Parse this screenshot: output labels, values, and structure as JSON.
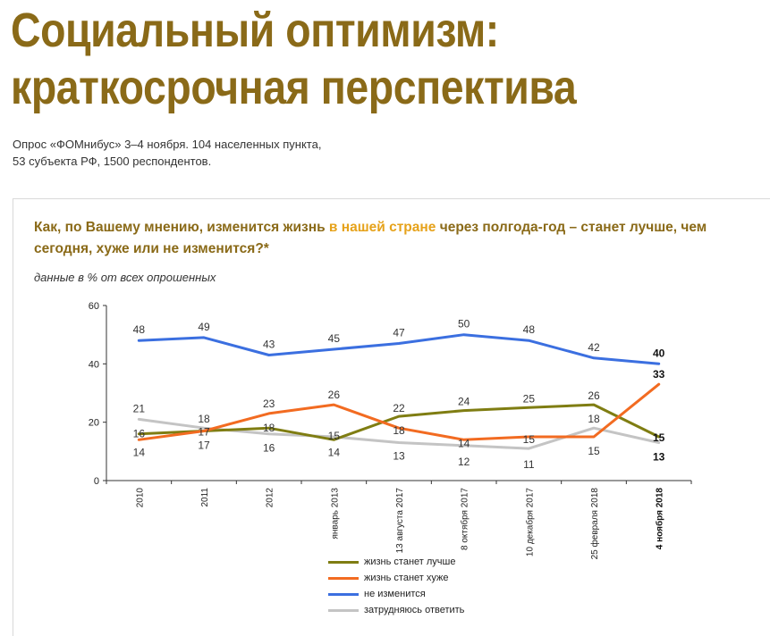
{
  "header": {
    "title_line1": "Социальный оптимизм:",
    "title_line2": "краткосрочная перспектива",
    "subtitle_line1": "Опрос «ФОМнибус» 3–4 ноября. 104 населенных пункта,",
    "subtitle_line2": "53 субъекта РФ, 1500 респондентов."
  },
  "question": {
    "part1": "Как, по Вашему мнению, изменится жизнь ",
    "highlight": "в нашей стране",
    "part2": " через полгода-год – станет лучше, чем сегодня, хуже или не изменится?*"
  },
  "units": "данные в % от всех опрошенных",
  "colors": {
    "title": "#8a6a18",
    "highlight": "#e6a21a",
    "better": "#7f7d12",
    "worse": "#f26b21",
    "same": "#3b6fe0",
    "unsure": "#c4c4c4"
  },
  "chart_data": {
    "type": "line",
    "categories": [
      "2010",
      "2011",
      "2012",
      "январь 2013",
      "13 августа 2017",
      "8 октября 2017",
      "10 декабря 2017",
      "25 февраля 2018",
      "4 ноября 2018"
    ],
    "ylim": [
      0,
      60
    ],
    "yticks": [
      0,
      20,
      40,
      60
    ],
    "grid": false,
    "legend_position": "bottom",
    "series": [
      {
        "name": "жизнь станет лучше",
        "color": "#7f7d12",
        "values": [
          16,
          17,
          18,
          14,
          22,
          24,
          25,
          26,
          15
        ]
      },
      {
        "name": "жизнь станет хуже",
        "color": "#f26b21",
        "values": [
          14,
          17,
          23,
          26,
          18,
          14,
          15,
          15,
          33
        ]
      },
      {
        "name": "не изменится",
        "color": "#3b6fe0",
        "values": [
          48,
          49,
          43,
          45,
          47,
          50,
          48,
          42,
          40
        ]
      },
      {
        "name": "затрудняюсь ответить",
        "color": "#c4c4c4",
        "values": [
          21,
          18,
          16,
          15,
          13,
          12,
          11,
          18,
          13
        ]
      }
    ],
    "labels": [
      {
        "text": "48",
        "series": 2,
        "point": 0
      },
      {
        "text": "49",
        "series": 2,
        "point": 1
      },
      {
        "text": "43",
        "series": 2,
        "point": 2
      },
      {
        "text": "45",
        "series": 2,
        "point": 3
      },
      {
        "text": "47",
        "series": 2,
        "point": 4
      },
      {
        "text": "50",
        "series": 2,
        "point": 5
      },
      {
        "text": "48",
        "series": 2,
        "point": 6
      },
      {
        "text": "42",
        "series": 2,
        "point": 7
      },
      {
        "text": "40",
        "series": 2,
        "point": 8
      },
      {
        "text": "21",
        "series": 3,
        "point": 0
      },
      {
        "text": "16",
        "series": 0,
        "point": 0
      },
      {
        "text": "14",
        "series": 1,
        "point": 0
      },
      {
        "text": "18",
        "series": 3,
        "point": 1
      },
      {
        "text": "17",
        "series": 1,
        "point": 1
      },
      {
        "text": "17",
        "series": 0,
        "point": 1
      },
      {
        "text": "23",
        "series": 1,
        "point": 2
      },
      {
        "text": "18",
        "series": 0,
        "point": 2
      },
      {
        "text": "16",
        "series": 3,
        "point": 2
      },
      {
        "text": "26",
        "series": 1,
        "point": 3
      },
      {
        "text": "15",
        "series": 3,
        "point": 3
      },
      {
        "text": "14",
        "series": 0,
        "point": 3
      },
      {
        "text": "22",
        "series": 0,
        "point": 4
      },
      {
        "text": "18",
        "series": 1,
        "point": 4
      },
      {
        "text": "13",
        "series": 3,
        "point": 4
      },
      {
        "text": "24",
        "series": 0,
        "point": 5
      },
      {
        "text": "14",
        "series": 1,
        "point": 5
      },
      {
        "text": "12",
        "series": 3,
        "point": 5
      },
      {
        "text": "25",
        "series": 0,
        "point": 6
      },
      {
        "text": "15",
        "series": 1,
        "point": 6
      },
      {
        "text": "11",
        "series": 3,
        "point": 6
      },
      {
        "text": "26",
        "series": 0,
        "point": 7
      },
      {
        "text": "18",
        "series": 3,
        "point": 7
      },
      {
        "text": "15",
        "series": 1,
        "point": 7
      },
      {
        "text": "33",
        "series": 1,
        "point": 8
      },
      {
        "text": "15",
        "series": 0,
        "point": 8
      },
      {
        "text": "13",
        "series": 3,
        "point": 8
      }
    ]
  }
}
